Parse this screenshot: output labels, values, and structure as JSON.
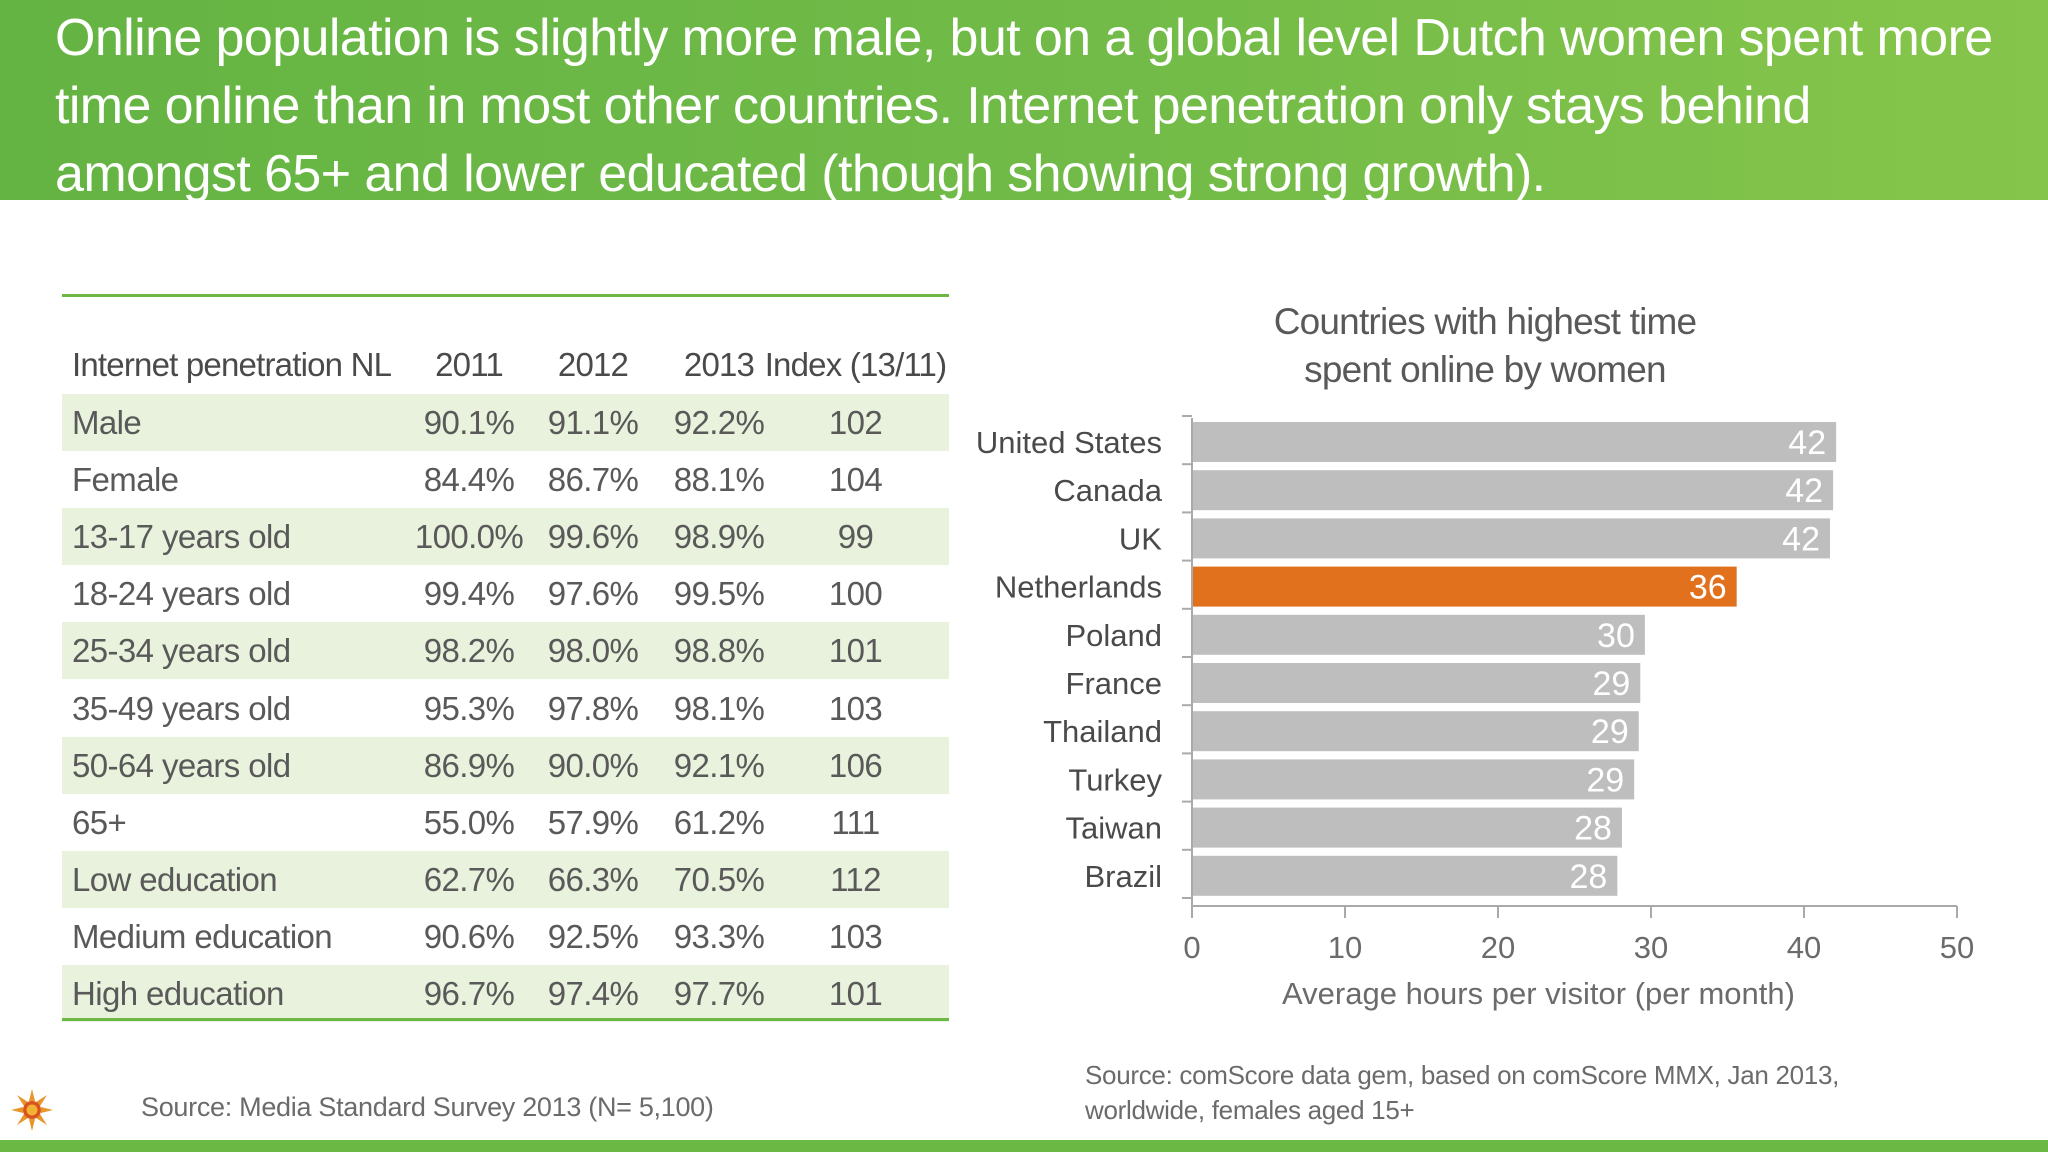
{
  "header": {
    "title": "Online population is slightly more male, but on a global level Dutch women spent more time online than in most other countries. Internet penetration only stays behind amongst 65+ and lower educated (though showing strong growth)."
  },
  "table": {
    "headers": [
      "Internet penetration NL",
      "2011",
      "2012",
      "2013",
      "Index (13/11)"
    ],
    "rows": [
      {
        "label": "Male",
        "y2011": "90.1%",
        "y2012": "91.1%",
        "y2013": "92.2%",
        "index": "102"
      },
      {
        "label": "Female",
        "y2011": "84.4%",
        "y2012": "86.7%",
        "y2013": "88.1%",
        "index": "104"
      },
      {
        "label": "13-17 years old",
        "y2011": "100.0%",
        "y2012": "99.6%",
        "y2013": "98.9%",
        "index": "99"
      },
      {
        "label": "18-24 years old",
        "y2011": "99.4%",
        "y2012": "97.6%",
        "y2013": "99.5%",
        "index": "100"
      },
      {
        "label": "25-34 years old",
        "y2011": "98.2%",
        "y2012": "98.0%",
        "y2013": "98.8%",
        "index": "101"
      },
      {
        "label": "35-49 years old",
        "y2011": "95.3%",
        "y2012": "97.8%",
        "y2013": "98.1%",
        "index": "103"
      },
      {
        "label": "50-64 years old",
        "y2011": "86.9%",
        "y2012": "90.0%",
        "y2013": "92.1%",
        "index": "106"
      },
      {
        "label": "65+",
        "y2011": "55.0%",
        "y2012": "57.9%",
        "y2013": "61.2%",
        "index": "111"
      },
      {
        "label": "Low education",
        "y2011": "62.7%",
        "y2012": "66.3%",
        "y2013": "70.5%",
        "index": "112"
      },
      {
        "label": "Medium education",
        "y2011": "90.6%",
        "y2012": "92.5%",
        "y2013": "93.3%",
        "index": "103"
      },
      {
        "label": "High education",
        "y2011": "96.7%",
        "y2012": "97.4%",
        "y2013": "97.7%",
        "index": "101"
      }
    ],
    "source": "Source: Media Standard Survey 2013 (N= 5,100)"
  },
  "chart_data": {
    "type": "bar",
    "orientation": "horizontal",
    "title": "Countries with highest time spent online by women",
    "xlabel": "Average hours per visitor (per month)",
    "ylabel": "",
    "xlim": [
      0,
      50
    ],
    "ticks": [
      0,
      10,
      20,
      30,
      40,
      50
    ],
    "categories": [
      "United States",
      "Canada",
      "UK",
      "Netherlands",
      "Poland",
      "France",
      "Thailand",
      "Turkey",
      "Taiwan",
      "Brazil"
    ],
    "values": [
      42.1,
      41.9,
      41.7,
      35.6,
      29.6,
      29.3,
      29.2,
      28.9,
      28.1,
      27.8
    ],
    "labels": [
      "42",
      "42",
      "42",
      "36",
      "30",
      "29",
      "29",
      "29",
      "28",
      "28"
    ],
    "highlight": "Netherlands",
    "colors": {
      "bar": "#bfbebe",
      "highlight": "#e2711d",
      "axis": "#aaaaaa",
      "label": "#ffffff"
    },
    "grid": false,
    "source": "Source: comScore data gem, based on comScore MMX, Jan 2013,\nworldwide, females aged 15+"
  },
  "colors": {
    "brand_green": "#6cb844",
    "row_shade": "#e8f2dc"
  }
}
